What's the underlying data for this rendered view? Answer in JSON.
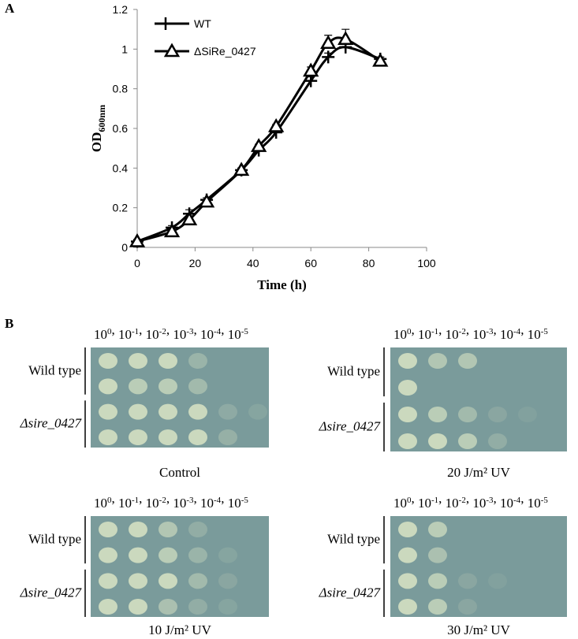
{
  "panel_a_label": "A",
  "chart_data": {
    "type": "line",
    "x_label": "Time (h)",
    "y_label": "OD",
    "y_label_sub": "600nm",
    "x": [
      0,
      12,
      18,
      24,
      36,
      42,
      48,
      60,
      66,
      72,
      84
    ],
    "series": [
      {
        "name": "WT",
        "color": "#000000",
        "marker": "plus",
        "values": [
          0.03,
          0.1,
          0.17,
          0.24,
          0.39,
          0.49,
          0.58,
          0.84,
          0.96,
          1.01,
          0.95
        ],
        "errors": [
          0.01,
          0.01,
          0.02,
          0.01,
          0.01,
          0.01,
          0.02,
          0.02,
          0.02,
          0.03,
          0.01
        ]
      },
      {
        "name": "ΔSiRe_0427",
        "color": "#000000",
        "marker": "triangle",
        "values": [
          0.03,
          0.08,
          0.14,
          0.23,
          0.39,
          0.51,
          0.61,
          0.89,
          1.03,
          1.05,
          0.94
        ],
        "errors": [
          0.01,
          0.01,
          0.01,
          0.01,
          0.01,
          0.01,
          0.01,
          0.02,
          0.04,
          0.05,
          0.01
        ]
      }
    ],
    "xlim": [
      0,
      100
    ],
    "xticks": [
      0,
      20,
      40,
      60,
      80,
      100
    ],
    "ylim": [
      0,
      1.2
    ],
    "yticks": [
      0,
      0.2,
      0.4,
      0.6,
      0.8,
      1,
      1.2
    ],
    "legend": "upper left"
  },
  "panel_b": {
    "label": "B",
    "dilution_base": "10",
    "dilution_exponents": [
      "0",
      "-1",
      "-2",
      "-3",
      "-4",
      "-5"
    ],
    "separator": ", ",
    "row_labels": [
      "Wild type",
      "Δsire_0427"
    ],
    "plates": [
      {
        "caption": "Control"
      },
      {
        "caption": "20 J/m² UV"
      },
      {
        "caption": "10 J/m² UV"
      },
      {
        "caption": "30 J/m² UV"
      }
    ]
  }
}
